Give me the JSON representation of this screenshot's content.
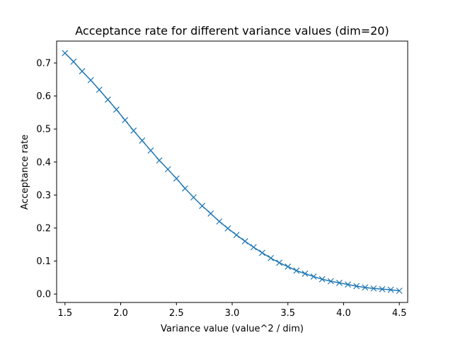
{
  "chart_data": {
    "type": "line",
    "title": "Acceptance rate for different variance values (dim=20)",
    "xlabel": "Variance value (value^2 / dim)",
    "ylabel": "Acceptance rate",
    "xlim": [
      1.425,
      4.575
    ],
    "ylim": [
      -0.0254,
      0.7664
    ],
    "xticks": [
      1.5,
      2.0,
      2.5,
      3.0,
      3.5,
      4.0,
      4.5
    ],
    "xtick_labels": [
      "1.5",
      "2.0",
      "2.5",
      "3.0",
      "3.5",
      "4.0",
      "4.5"
    ],
    "yticks": [
      0.0,
      0.1,
      0.2,
      0.3,
      0.4,
      0.5,
      0.6,
      0.7
    ],
    "ytick_labels": [
      "0.0",
      "0.1",
      "0.2",
      "0.3",
      "0.4",
      "0.5",
      "0.6",
      "0.7"
    ],
    "grid": false,
    "marker": "x",
    "color": "#1f77b4",
    "series": [
      {
        "x": [
          1.5,
          1.5769,
          1.6538,
          1.7308,
          1.8077,
          1.8846,
          1.9615,
          2.0385,
          2.1154,
          2.1923,
          2.2692,
          2.3462,
          2.4231,
          2.5,
          2.5769,
          2.6538,
          2.7308,
          2.8077,
          2.8846,
          2.9615,
          3.0385,
          3.1154,
          3.1923,
          3.2692,
          3.3462,
          3.4231,
          3.5,
          3.5769,
          3.6538,
          3.7308,
          3.8077,
          3.8846,
          3.9615,
          4.0385,
          4.1154,
          4.1923,
          4.2692,
          4.3462,
          4.4231,
          4.5
        ],
        "values": [
          0.73,
          0.704,
          0.675,
          0.648,
          0.619,
          0.589,
          0.559,
          0.527,
          0.495,
          0.465,
          0.435,
          0.405,
          0.378,
          0.35,
          0.32,
          0.293,
          0.267,
          0.244,
          0.22,
          0.199,
          0.179,
          0.16,
          0.142,
          0.125,
          0.109,
          0.095,
          0.083,
          0.071,
          0.062,
          0.053,
          0.045,
          0.039,
          0.034,
          0.029,
          0.024,
          0.02,
          0.017,
          0.015,
          0.013,
          0.01
        ]
      }
    ]
  }
}
